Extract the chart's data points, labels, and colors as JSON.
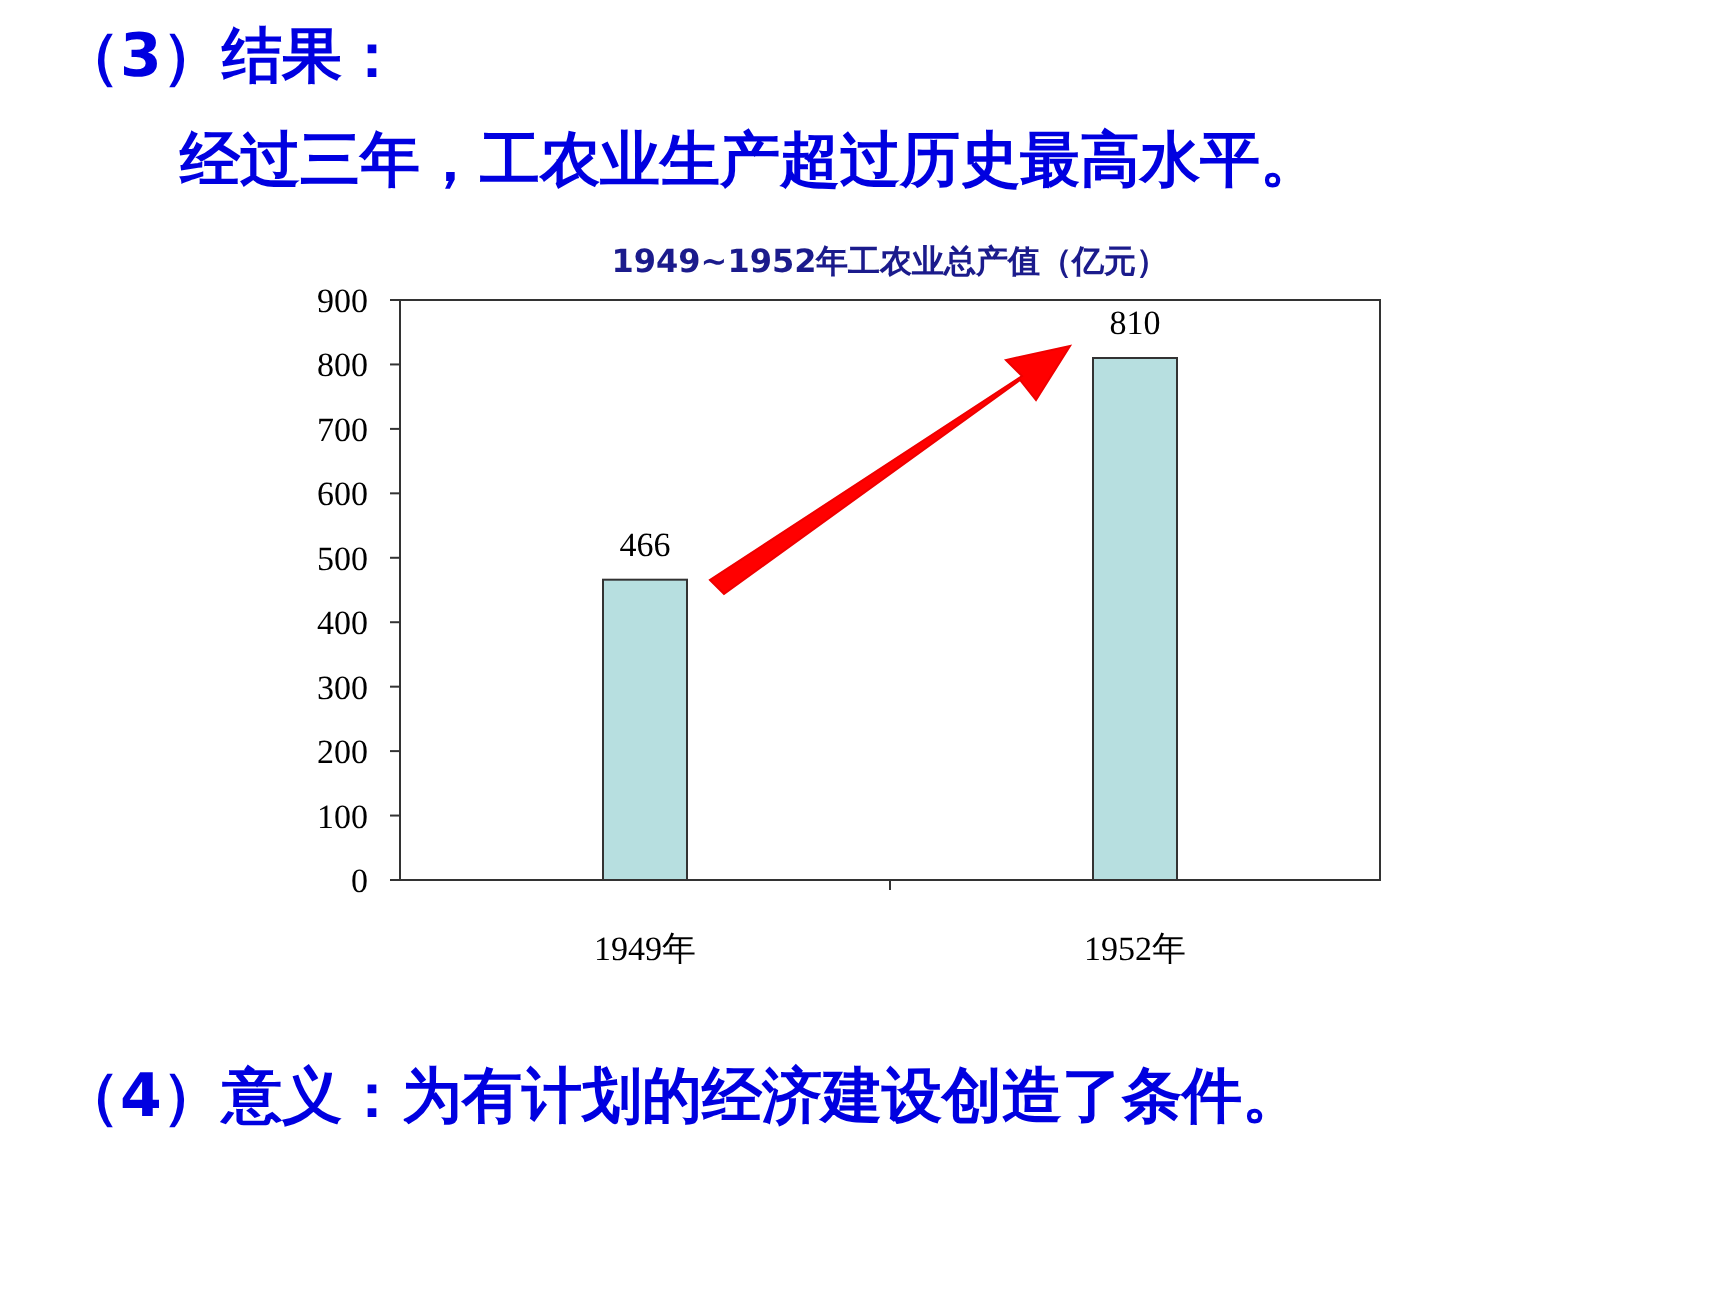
{
  "chart_data": {
    "type": "bar",
    "title": "1949~1952年工农业总产值（亿元）",
    "annotations": [
      "（3）结果：",
      "经过三年，工农业生产超过历史最高水平。",
      "（4）意义：为有计划的经济建设创造了条件。"
    ],
    "categories": [
      "1949年",
      "1952年"
    ],
    "values": [
      466,
      810
    ],
    "color": "#b7dfe0",
    "ylim": [
      0,
      900
    ],
    "yticks": [
      0,
      100,
      200,
      300,
      400,
      500,
      600,
      700,
      800,
      900
    ],
    "data_labels": true,
    "grid": false
  }
}
